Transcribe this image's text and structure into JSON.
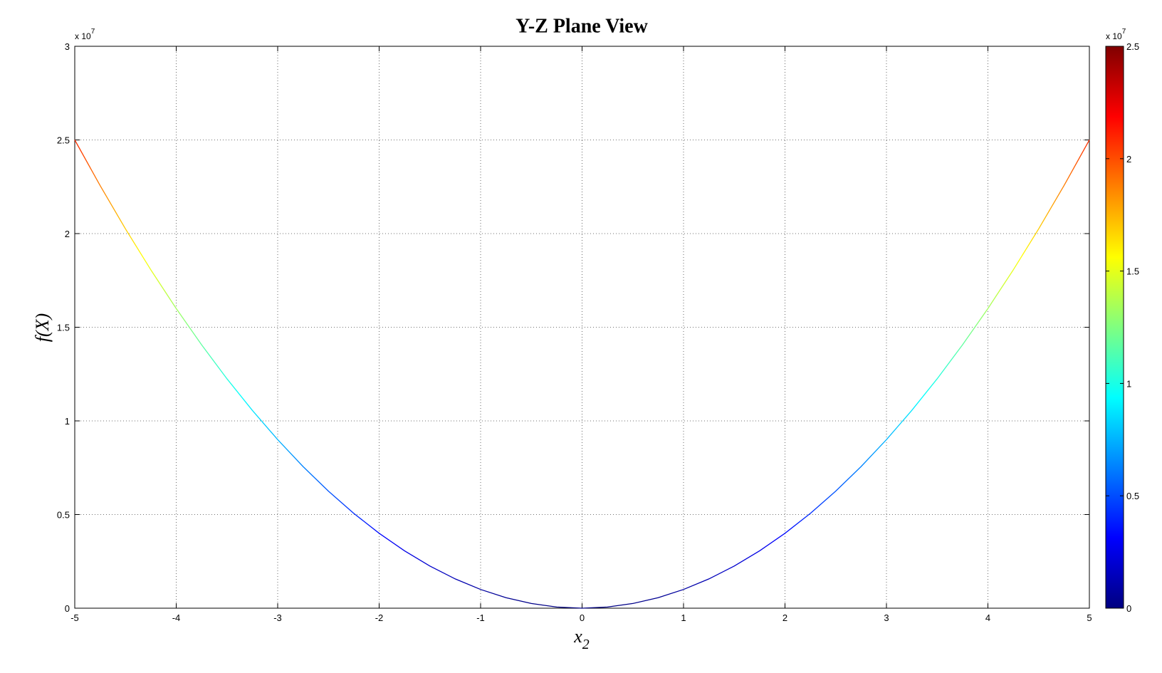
{
  "chart_data": {
    "type": "line",
    "title": "Y-Z Plane View",
    "x_label": {
      "text": "x",
      "subscript": "2"
    },
    "y_label": "f(X)",
    "y_multiplier": {
      "base": "x 10",
      "exponent": "7"
    },
    "x": [
      -5,
      -4.75,
      -4.5,
      -4.25,
      -4,
      -3.75,
      -3.5,
      -3.25,
      -3,
      -2.75,
      -2.5,
      -2.25,
      -2,
      -1.75,
      -1.5,
      -1.25,
      -1,
      -0.75,
      -0.5,
      -0.25,
      0,
      0.25,
      0.5,
      0.75,
      1,
      1.25,
      1.5,
      1.75,
      2,
      2.25,
      2.5,
      2.75,
      3,
      3.25,
      3.5,
      3.75,
      4,
      4.25,
      4.5,
      4.75,
      5
    ],
    "values": [
      2.5,
      2.25625,
      2.025,
      1.80625,
      1.6,
      1.40625,
      1.225,
      1.05625,
      0.9,
      0.75625,
      0.625,
      0.50625,
      0.4,
      0.30625,
      0.225,
      0.15625,
      0.1,
      0.05625,
      0.025,
      0.00625,
      0,
      0.00625,
      0.025,
      0.05625,
      0.1,
      0.15625,
      0.225,
      0.30625,
      0.4,
      0.50625,
      0.625,
      0.75625,
      0.9,
      1.05625,
      1.225,
      1.40625,
      1.6,
      1.80625,
      2.025,
      2.25625,
      2.5
    ],
    "xlim": [
      -5,
      5
    ],
    "xticks": [
      -5,
      -4,
      -3,
      -2,
      -1,
      0,
      1,
      2,
      3,
      4,
      5
    ],
    "ylim": [
      0,
      3
    ],
    "yticks": [
      0,
      0.5,
      1,
      1.5,
      2,
      2.5,
      3
    ],
    "grid": true,
    "colormap": [
      "#000080",
      "#0000ff",
      "#0080ff",
      "#00ffff",
      "#80ff80",
      "#ffff00",
      "#ff8000",
      "#ff0000",
      "#800000"
    ],
    "colorbar": {
      "lim": [
        0,
        2.5
      ],
      "ticks": [
        0,
        0.5,
        1,
        1.5,
        2,
        2.5
      ],
      "multiplier": {
        "base": "x 10",
        "exponent": "7"
      }
    }
  }
}
